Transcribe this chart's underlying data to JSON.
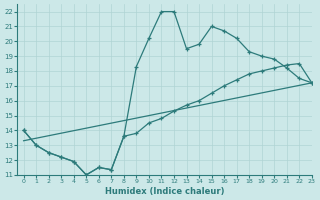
{
  "xlabel": "Humidex (Indice chaleur)",
  "ylabel": "",
  "bg_color": "#cce8e8",
  "line_color": "#2d7b7b",
  "grid_color": "#b0d4d4",
  "xlim": [
    -0.5,
    23
  ],
  "ylim": [
    11,
    22.5
  ],
  "xticks": [
    0,
    1,
    2,
    3,
    4,
    5,
    6,
    7,
    8,
    9,
    10,
    11,
    12,
    13,
    14,
    15,
    16,
    17,
    18,
    19,
    20,
    21,
    22,
    23
  ],
  "yticks": [
    11,
    12,
    13,
    14,
    15,
    16,
    17,
    18,
    19,
    20,
    21,
    22
  ],
  "line1_x": [
    0,
    1,
    2,
    3,
    4,
    5,
    6,
    7,
    8,
    9,
    10,
    11,
    12,
    13,
    14,
    15,
    16,
    17,
    18,
    19,
    20,
    21,
    22,
    23
  ],
  "line1_y": [
    14.0,
    13.0,
    12.5,
    12.2,
    11.9,
    11.0,
    11.5,
    11.35,
    13.6,
    18.3,
    20.2,
    22.0,
    22.0,
    19.5,
    19.8,
    21.0,
    20.7,
    20.2,
    19.3,
    19.0,
    18.8,
    18.2,
    17.5,
    17.2
  ],
  "line2_x": [
    0,
    1,
    2,
    3,
    4,
    5,
    6,
    7,
    8,
    9,
    10,
    11,
    12,
    13,
    14,
    15,
    16,
    17,
    18,
    19,
    20,
    21,
    22,
    23
  ],
  "line2_y": [
    14.0,
    13.0,
    12.5,
    12.2,
    11.9,
    11.0,
    11.5,
    11.35,
    13.6,
    13.8,
    14.5,
    14.8,
    15.3,
    15.7,
    16.0,
    16.5,
    17.0,
    17.4,
    17.8,
    18.0,
    18.2,
    18.4,
    18.5,
    17.2
  ],
  "line3_x": [
    0,
    23
  ],
  "line3_y": [
    13.3,
    17.2
  ]
}
